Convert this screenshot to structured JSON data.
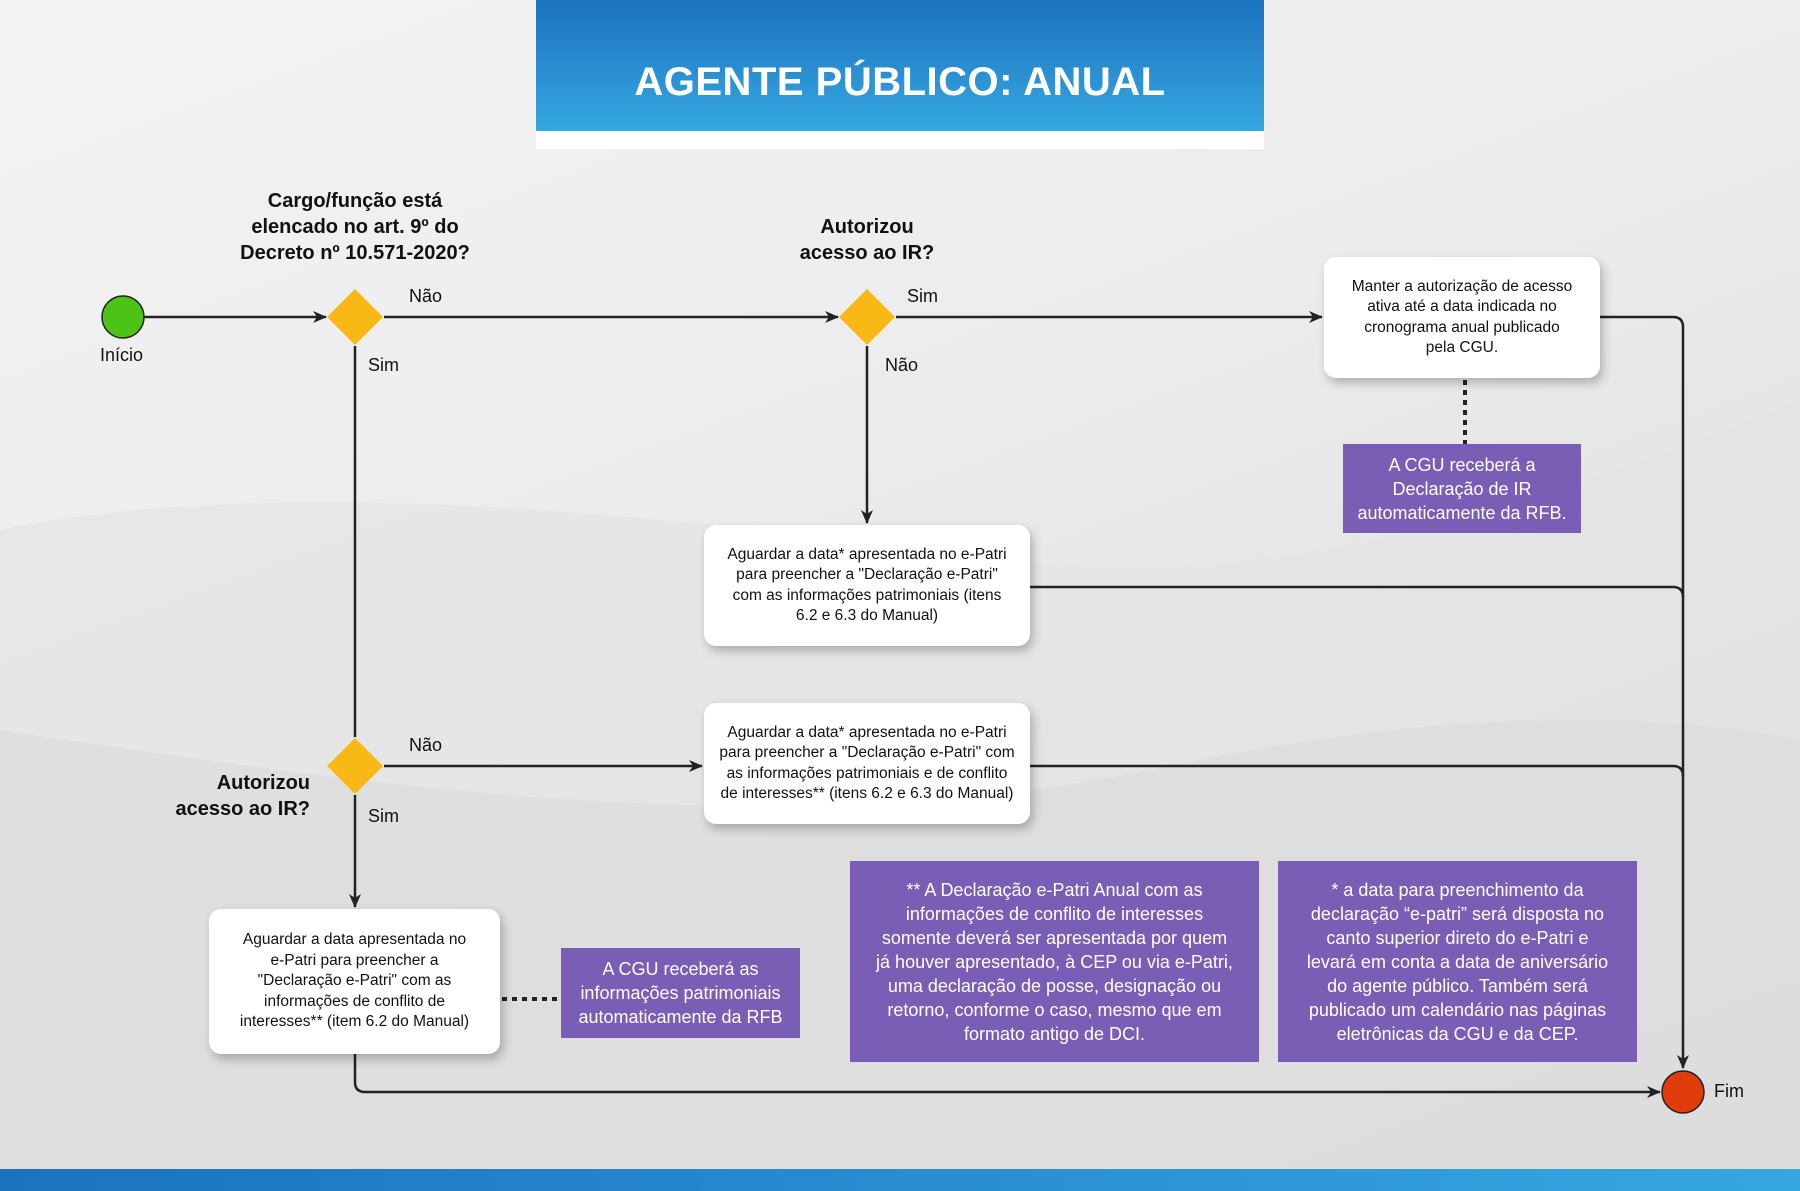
{
  "header": {
    "title": "AGENTE PÚBLICO: ANUAL"
  },
  "colors": {
    "header_blue": "#1c72bf",
    "start": "#4cc417",
    "end": "#e03c0c",
    "decision": "#f8b816",
    "note": "#7a5db5"
  },
  "nodes": {
    "start_label": "Início",
    "end_label": "Fim",
    "decision1": {
      "question": "Cargo/função está\nelencado no art. 9º do\nDecreto nº 10.571-2020?",
      "no": "Não",
      "yes": "Sim"
    },
    "decision2": {
      "question": "Autorizou\nacesso ao IR?",
      "yes": "Sim",
      "no": "Não"
    },
    "decision3": {
      "question": "Autorizou\nacesso ao IR?",
      "no": "Não",
      "yes": "Sim"
    },
    "box_keep_auth": "Manter a autorização de acesso\nativa até a data indicada no\ncronograma anual publicado\npela CGU.",
    "box_wait_patrimonial": "Aguardar a data* apresentada no e-Patri\npara preencher a \"Declaração e-Patri\"\ncom as informações patrimoniais (itens\n6.2 e 6.3 do Manual)",
    "box_wait_full": "Aguardar a data* apresentada no e-Patri\npara preencher a \"Declaração e-Patri\" com\nas informações patrimoniais e de conflito\nde interesses** (itens 6.2 e 6.3 do Manual)",
    "box_wait_conflict": "Aguardar a data apresentada no\ne-Patri para preencher a\n\"Declaração e-Patri\" com as\ninformações de conflito de\ninteresses** (item 6.2 do Manual)"
  },
  "notes": {
    "cgu_ir": "A CGU receberá a\nDeclaração de IR\nautomaticamente da RFB.",
    "cgu_patrimonial": "A CGU receberá as\ninformações patrimoniais\nautomaticamente da RFB",
    "footnote_double": "** A Declaração e-Patri Anual com as\ninformações de conflito de interesses\nsomente deverá ser apresentada por quem\njá houver apresentado, à CEP ou via e-Patri,\numa declaração de posse, designação ou\nretorno, conforme o caso, mesmo que em\nformato antigo de DCI.",
    "footnote_single": "* a data para preenchimento da\ndeclaração “e-patri” será disposta no\ncanto superior direto do e-Patri e\nlevará em conta a data de aniversário\ndo agente público. Também será\npublicado um calendário nas páginas\neletrônicas da CGU e da CEP."
  }
}
